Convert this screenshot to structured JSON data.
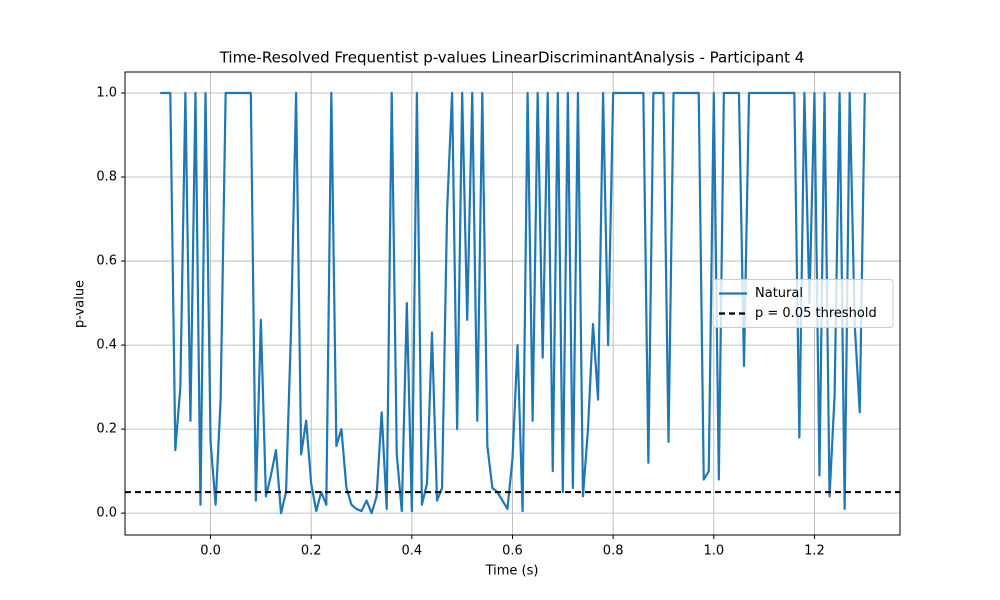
{
  "chart_data": {
    "type": "line",
    "title": "Time-Resolved Frequentist p-values LinearDiscriminantAnalysis - Participant 4",
    "x_label": "Time (s)",
    "y_label": "p-value",
    "x": [
      -0.1,
      -0.09,
      -0.08,
      -0.07,
      -0.06,
      -0.05,
      -0.04,
      -0.03,
      -0.02,
      -0.01,
      0,
      0.01,
      0.02,
      0.03,
      0.04,
      0.05,
      0.06,
      0.07,
      0.08,
      0.09,
      0.1,
      0.11,
      0.12,
      0.13,
      0.14,
      0.15,
      0.16,
      0.17,
      0.18,
      0.19,
      0.2,
      0.21,
      0.22,
      0.23,
      0.24,
      0.25,
      0.26,
      0.27,
      0.28,
      0.29,
      0.3,
      0.31,
      0.32,
      0.33,
      0.34,
      0.35,
      0.36,
      0.37,
      0.38,
      0.39,
      0.4,
      0.41,
      0.42,
      0.43,
      0.44,
      0.45,
      0.46,
      0.47,
      0.48,
      0.49,
      0.5,
      0.51,
      0.52,
      0.53,
      0.54,
      0.55,
      0.56,
      0.57,
      0.58,
      0.59,
      0.6,
      0.61,
      0.62,
      0.63,
      0.64,
      0.65,
      0.66,
      0.67,
      0.68,
      0.69,
      0.7,
      0.71,
      0.72,
      0.73,
      0.74,
      0.75,
      0.76,
      0.77,
      0.78,
      0.79,
      0.8,
      0.81,
      0.82,
      0.83,
      0.84,
      0.85,
      0.86,
      0.87,
      0.88,
      0.89,
      0.9,
      0.91,
      0.92,
      0.93,
      0.94,
      0.95,
      0.96,
      0.97,
      0.98,
      0.99,
      1,
      1.01,
      1.02,
      1.03,
      1.04,
      1.05,
      1.06,
      1.07,
      1.08,
      1.09,
      1.1,
      1.11,
      1.12,
      1.13,
      1.14,
      1.15,
      1.16,
      1.17,
      1.18,
      1.19,
      1.2,
      1.21,
      1.22,
      1.23,
      1.24,
      1.25,
      1.26,
      1.27,
      1.28,
      1.29,
      1.3
    ],
    "series": [
      {
        "name": "Natural",
        "color": "#1f77b4",
        "values": [
          1,
          1,
          1,
          0.15,
          0.3,
          1,
          0.22,
          1,
          0.02,
          1,
          0.17,
          0.02,
          0.27,
          1,
          1,
          1,
          1,
          1,
          1,
          0.03,
          0.46,
          0.04,
          0.09,
          0.15,
          0,
          0.05,
          0.44,
          1,
          0.14,
          0.22,
          0.07,
          0.005,
          0.05,
          0.02,
          1,
          0.16,
          0.2,
          0.06,
          0.02,
          0.01,
          0.005,
          0.03,
          0,
          0.04,
          0.24,
          0.01,
          1,
          0.14,
          0.005,
          0.5,
          0.005,
          1,
          0.02,
          0.07,
          0.43,
          0.03,
          0.06,
          0.72,
          1,
          0.2,
          1,
          0.46,
          1,
          0.22,
          1,
          0.16,
          0.06,
          0.05,
          0.03,
          0.01,
          0.13,
          0.4,
          0.005,
          1,
          0.22,
          1,
          0.37,
          1,
          0.1,
          1,
          0.05,
          1,
          0.06,
          1,
          0.04,
          0.2,
          0.45,
          0.27,
          1,
          0.4,
          1,
          1,
          1,
          1,
          1,
          1,
          1,
          0.12,
          1,
          1,
          1,
          0.17,
          1,
          1,
          1,
          1,
          1,
          1,
          0.08,
          0.1,
          1,
          0.08,
          1,
          1,
          1,
          1,
          0.35,
          1,
          1,
          1,
          1,
          1,
          1,
          1,
          1,
          1,
          1,
          0.18,
          1,
          0.5,
          1,
          0.09,
          1,
          0.04,
          0.28,
          1,
          0.01,
          1,
          0.45,
          0.24,
          1
        ]
      }
    ],
    "hlines": [
      {
        "name": "p = 0.05 threshold",
        "value": 0.05,
        "color": "#000000",
        "dashed": true
      }
    ],
    "xlim": [
      -0.17,
      1.37
    ],
    "ylim": [
      -0.052,
      1.05
    ],
    "xticks": [
      {
        "value": 0,
        "label": "0.0"
      },
      0.2,
      0.4,
      0.6,
      0.8,
      {
        "value": 1,
        "label": "1.0"
      },
      1.2
    ],
    "yticks": [
      {
        "value": 0,
        "label": "0.0"
      },
      0.2,
      0.4,
      0.6,
      0.8,
      {
        "value": 1,
        "label": "1.0"
      }
    ],
    "grid": true,
    "legend": "center right"
  }
}
